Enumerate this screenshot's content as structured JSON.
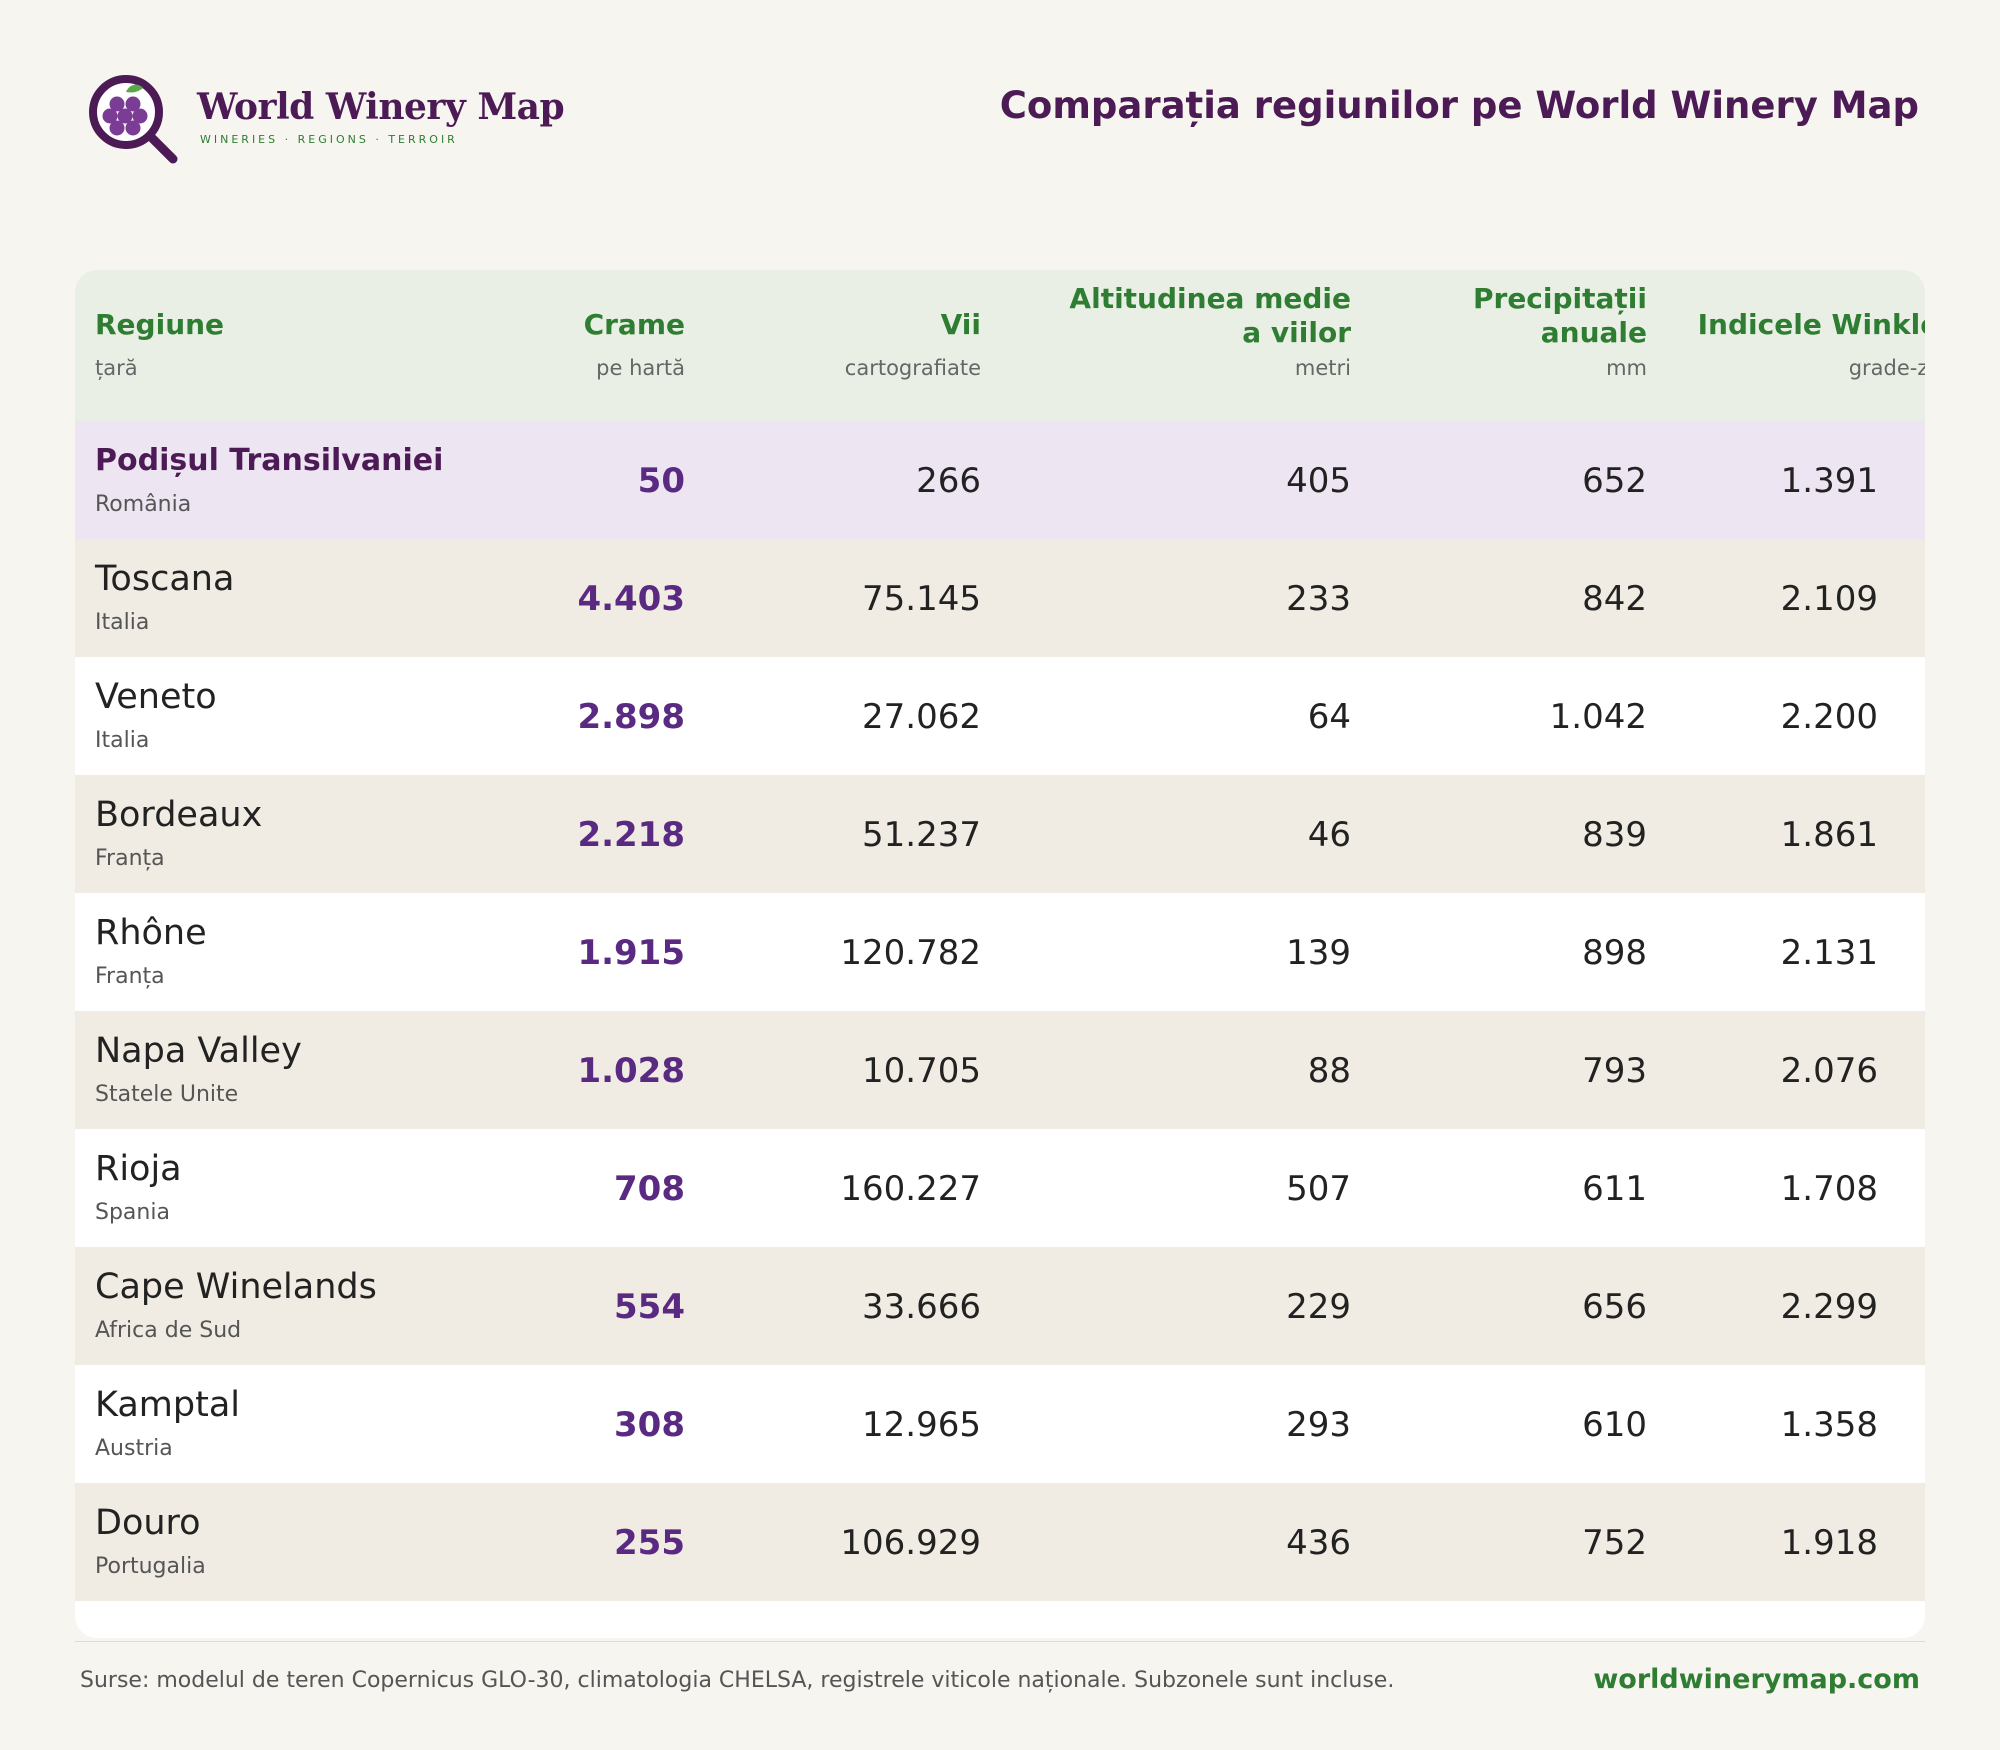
{
  "brand": {
    "name": "World Winery Map",
    "tagline": "WINERIES · REGIONS · TERROIR"
  },
  "title": "Comparația regiunilor pe World Winery Map",
  "colors": {
    "brand_purple": "#4c1a55",
    "accent_green": "#2e7d32",
    "highlight_row": "#ede5f2",
    "alt_row": "#f0ece3"
  },
  "columns": [
    {
      "label": "Regiune",
      "sub": "țară"
    },
    {
      "label": "Crame",
      "sub": "pe hartă"
    },
    {
      "label": "Vii",
      "sub": "cartografiate"
    },
    {
      "label": "Altitudinea medie a viilor",
      "sub": "metri"
    },
    {
      "label": "Precipitații anuale",
      "sub": "mm"
    },
    {
      "label": "Indicele Winkler",
      "sub": "grade-zile"
    }
  ],
  "rows": [
    {
      "region": "Podișul Transilvaniei",
      "country": "România",
      "wineries": "50",
      "vineyards": "266",
      "altitude": "405",
      "precip": "652",
      "winkler": "1.391",
      "highlight": true
    },
    {
      "region": "Toscana",
      "country": "Italia",
      "wineries": "4.403",
      "vineyards": "75.145",
      "altitude": "233",
      "precip": "842",
      "winkler": "2.109"
    },
    {
      "region": "Veneto",
      "country": "Italia",
      "wineries": "2.898",
      "vineyards": "27.062",
      "altitude": "64",
      "precip": "1.042",
      "winkler": "2.200"
    },
    {
      "region": "Bordeaux",
      "country": "Franța",
      "wineries": "2.218",
      "vineyards": "51.237",
      "altitude": "46",
      "precip": "839",
      "winkler": "1.861"
    },
    {
      "region": "Rhône",
      "country": "Franța",
      "wineries": "1.915",
      "vineyards": "120.782",
      "altitude": "139",
      "precip": "898",
      "winkler": "2.131"
    },
    {
      "region": "Napa Valley",
      "country": "Statele Unite",
      "wineries": "1.028",
      "vineyards": "10.705",
      "altitude": "88",
      "precip": "793",
      "winkler": "2.076"
    },
    {
      "region": "Rioja",
      "country": "Spania",
      "wineries": "708",
      "vineyards": "160.227",
      "altitude": "507",
      "precip": "611",
      "winkler": "1.708"
    },
    {
      "region": "Cape Winelands",
      "country": "Africa de Sud",
      "wineries": "554",
      "vineyards": "33.666",
      "altitude": "229",
      "precip": "656",
      "winkler": "2.299"
    },
    {
      "region": "Kamptal",
      "country": "Austria",
      "wineries": "308",
      "vineyards": "12.965",
      "altitude": "293",
      "precip": "610",
      "winkler": "1.358"
    },
    {
      "region": "Douro",
      "country": "Portugalia",
      "wineries": "255",
      "vineyards": "106.929",
      "altitude": "436",
      "precip": "752",
      "winkler": "1.918"
    }
  ],
  "footer": {
    "sources": "Surse: modelul de teren Copernicus GLO-30, climatologia CHELSA, registrele viticole naționale. Subzonele sunt incluse.",
    "site": "worldwinerymap.com"
  }
}
